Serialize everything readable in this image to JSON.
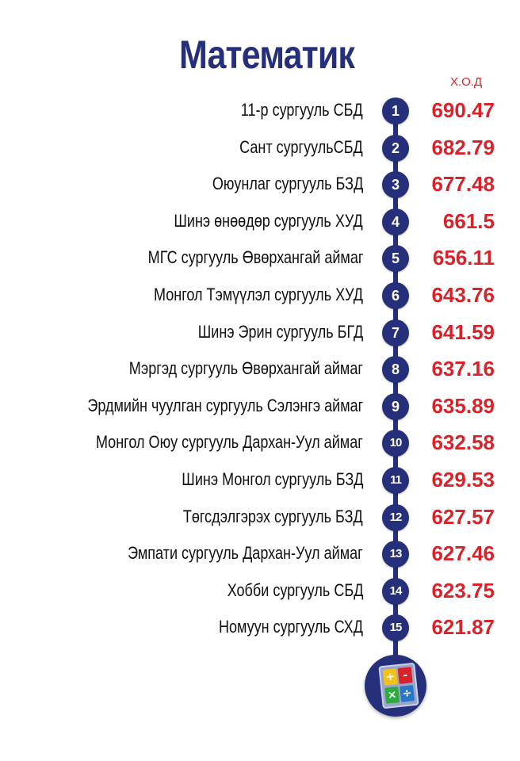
{
  "title": "Математик",
  "score_header": "Х.О.Д",
  "rows": [
    {
      "rank": "1",
      "school": "11-р сургууль СБД",
      "score": "690.47"
    },
    {
      "rank": "2",
      "school": "Сант сургуульСБД",
      "score": "682.79"
    },
    {
      "rank": "3",
      "school": "Оюунлаг сургууль БЗД",
      "score": "677.48"
    },
    {
      "rank": "4",
      "school": "Шинэ өнөөдөр сургууль ХУД",
      "score": "661.5"
    },
    {
      "rank": "5",
      "school": "МГС сургууль Өвөрхангай аймаг",
      "score": "656.11"
    },
    {
      "rank": "6",
      "school": "Монгол Тэмүүлэл сургууль ХУД",
      "score": "643.76"
    },
    {
      "rank": "7",
      "school": "Шинэ Эрин  сургууль БГД",
      "score": "641.59"
    },
    {
      "rank": "8",
      "school": "Мэргэд сургууль Өвөрхангай аймаг",
      "score": "637.16"
    },
    {
      "rank": "9",
      "school": "Эрдмийн чуулган сургууль Сэлэнгэ аймаг",
      "score": "635.89"
    },
    {
      "rank": "10",
      "school": "Монгол Оюу сургууль Дархан-Уул аймаг",
      "score": "632.58"
    },
    {
      "rank": "11",
      "school": "Шинэ Монгол сургууль БЗД",
      "score": "629.53"
    },
    {
      "rank": "12",
      "school": "Төгсдэлгэрэх сургууль БЗД",
      "score": "627.57"
    },
    {
      "rank": "13",
      "school": "Эмпати сургууль Дархан-Уул аймаг",
      "score": "627.46"
    },
    {
      "rank": "14",
      "school": "Хобби сургууль СБД",
      "score": "623.75"
    },
    {
      "rank": "15",
      "school": "Номуун сургууль СХД",
      "score": "621.87"
    }
  ],
  "calculator_keys": [
    "+",
    "-",
    "×",
    "÷"
  ],
  "colors": {
    "title": "#26307a",
    "score": "#d8232a",
    "badge": "#26307a"
  }
}
